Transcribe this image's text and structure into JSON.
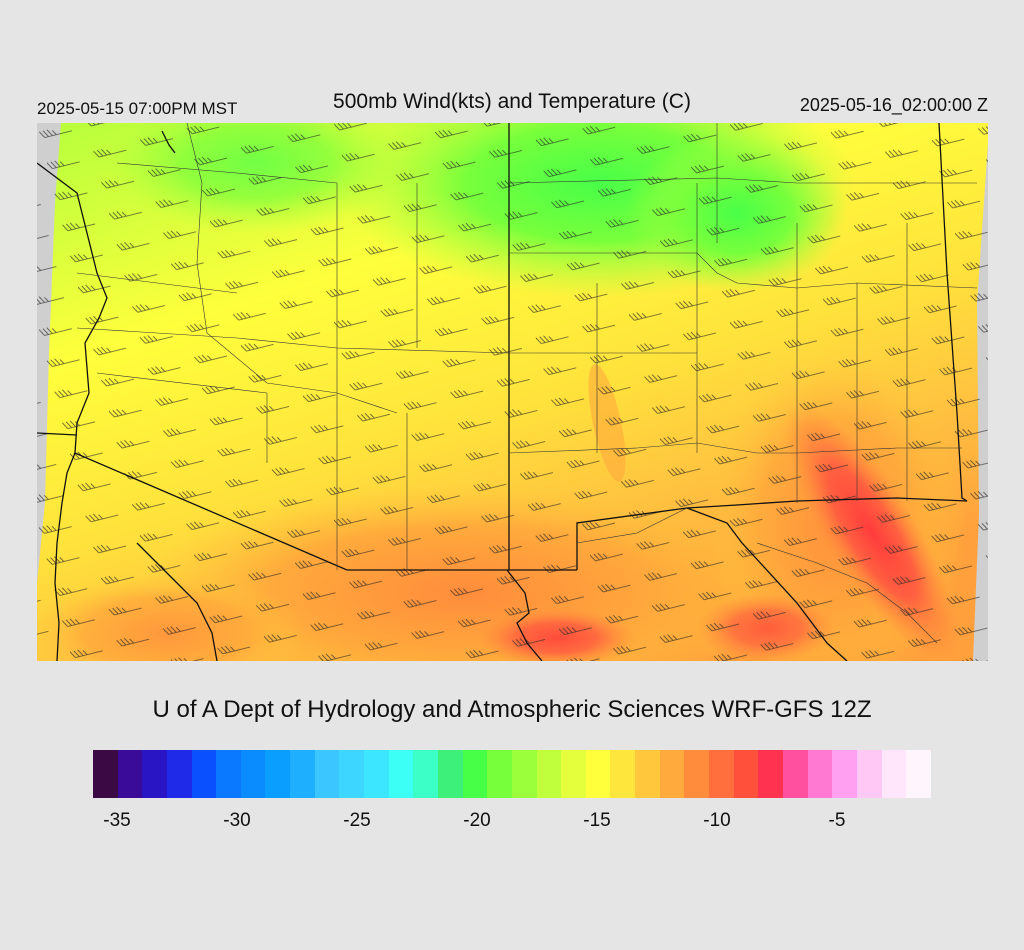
{
  "header": {
    "local_time": "2025-05-15 07:00PM MST",
    "title": "500mb Wind(kts) and Temperature (C)",
    "valid_time": "2025-05-16_02:00:00 Z"
  },
  "credit": "U of A Dept of Hydrology and Atmospheric Sciences WRF-GFS 12Z",
  "colorbar": {
    "colors": [
      "#3b0a45",
      "#3a0a99",
      "#2a15c4",
      "#1f2ae8",
      "#0a50ff",
      "#0a78ff",
      "#0a8cff",
      "#0a9eff",
      "#1eb0ff",
      "#3cc6ff",
      "#3cd6ff",
      "#3ce6ff",
      "#3cfff6",
      "#3cffc8",
      "#3cf07a",
      "#48ff48",
      "#78ff3c",
      "#9cff3c",
      "#c0ff3c",
      "#e4ff3c",
      "#ffff3c",
      "#ffe63c",
      "#ffc83c",
      "#ffaa3c",
      "#ff8c3c",
      "#ff6e3c",
      "#ff503c",
      "#ff3250",
      "#ff50a0",
      "#ff78d2",
      "#ffa0f0",
      "#ffc8f5",
      "#ffe6fa",
      "#fff5fd"
    ],
    "labels": [
      "-35",
      "-30",
      "-25",
      "-20",
      "-15",
      "-10",
      "-5"
    ]
  },
  "map": {
    "field": "500mb temperature (C)",
    "wind_units": "kts",
    "ocean_color": "#cfcfcf",
    "dominant_colors": [
      "#ffff3c",
      "#c0ff3c",
      "#78ff3c",
      "#ffc83c",
      "#ffaa3c",
      "#ff6e3c",
      "#ff3c3c"
    ]
  }
}
